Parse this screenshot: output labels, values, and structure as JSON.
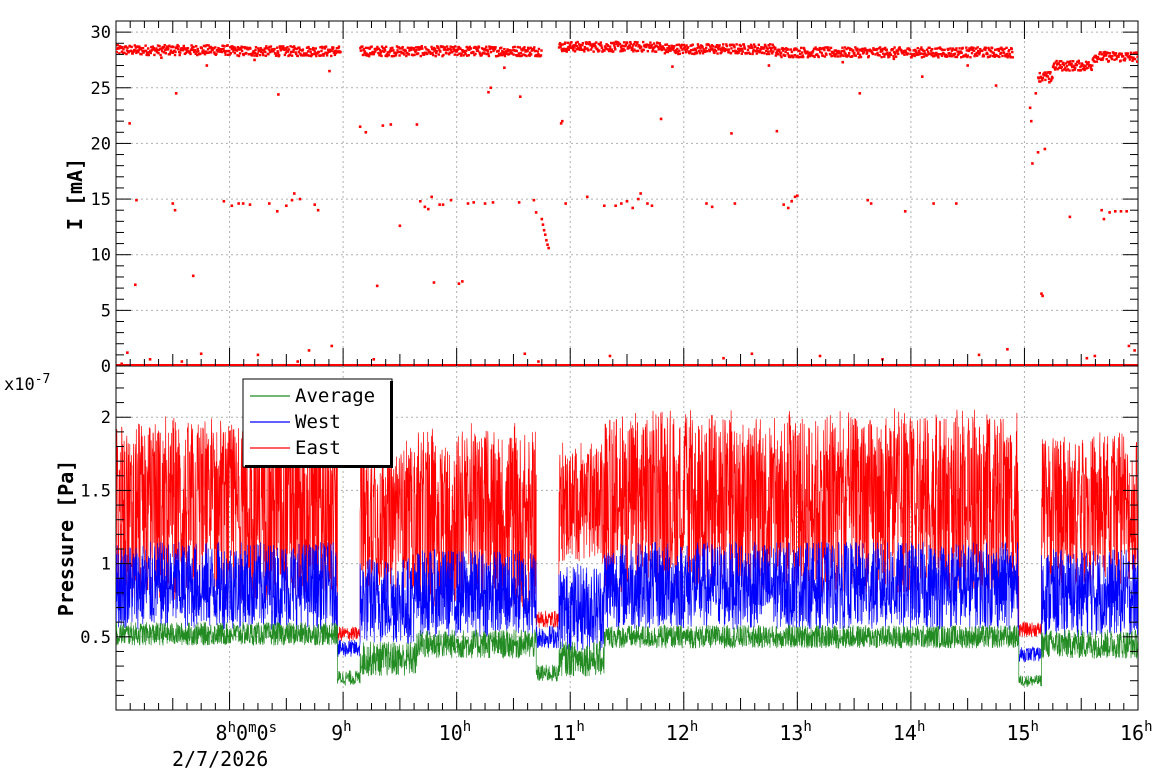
{
  "chart_data": [
    {
      "type": "scatter",
      "panel": "current",
      "ylabel": "I [mA]",
      "ylim": [
        0,
        31
      ],
      "yticks": [
        0,
        5,
        10,
        15,
        20,
        25,
        30
      ],
      "x_range_hours": [
        7.0,
        16.0
      ],
      "grid": true,
      "series": [
        {
          "color": "#ff0000",
          "bands": [
            {
              "start": 7.0,
              "end": 8.0,
              "level": 28.4
            },
            {
              "start": 8.0,
              "end": 8.98,
              "level": 28.3
            },
            {
              "start": 9.15,
              "end": 10.75,
              "level": 28.3
            },
            {
              "start": 10.9,
              "end": 11.8,
              "level": 28.7
            },
            {
              "start": 11.8,
              "end": 12.8,
              "level": 28.5
            },
            {
              "start": 12.8,
              "end": 14.9,
              "level": 28.2
            },
            {
              "start": 15.12,
              "end": 15.25,
              "level": 26.0
            },
            {
              "start": 15.25,
              "end": 15.6,
              "level": 27.0
            },
            {
              "start": 15.6,
              "end": 16.0,
              "level": 27.8
            }
          ],
          "outliers": [
            [
              7.05,
              0.2
            ],
            [
              7.1,
              1.2
            ],
            [
              7.12,
              21.8
            ],
            [
              7.17,
              7.3
            ],
            [
              7.18,
              14.9
            ],
            [
              7.3,
              0.6
            ],
            [
              7.4,
              27.7
            ],
            [
              7.5,
              14.6
            ],
            [
              7.52,
              14.0
            ],
            [
              7.53,
              24.5
            ],
            [
              7.58,
              0.4
            ],
            [
              7.68,
              8.1
            ],
            [
              7.75,
              1.1
            ],
            [
              7.8,
              27.0
            ],
            [
              7.95,
              14.8
            ],
            [
              8.02,
              14.4
            ],
            [
              8.08,
              14.6
            ],
            [
              8.12,
              14.6
            ],
            [
              8.18,
              14.5
            ],
            [
              8.22,
              27.5
            ],
            [
              8.25,
              1.0
            ],
            [
              8.35,
              14.6
            ],
            [
              8.42,
              13.9
            ],
            [
              8.43,
              24.4
            ],
            [
              8.5,
              14.4
            ],
            [
              8.55,
              14.9
            ],
            [
              8.57,
              15.5
            ],
            [
              8.6,
              0.4
            ],
            [
              8.62,
              15.0
            ],
            [
              8.7,
              1.4
            ],
            [
              8.75,
              14.5
            ],
            [
              8.78,
              14.0
            ],
            [
              8.88,
              26.5
            ],
            [
              8.9,
              1.8
            ],
            [
              9.15,
              21.5
            ],
            [
              9.2,
              21.0
            ],
            [
              9.27,
              0.6
            ],
            [
              9.3,
              7.2
            ],
            [
              9.35,
              21.6
            ],
            [
              9.42,
              21.7
            ],
            [
              9.5,
              12.6
            ],
            [
              9.65,
              21.7
            ],
            [
              9.68,
              14.8
            ],
            [
              9.72,
              14.3
            ],
            [
              9.75,
              14.1
            ],
            [
              9.78,
              15.2
            ],
            [
              9.8,
              7.5
            ],
            [
              9.85,
              14.5
            ],
            [
              9.88,
              14.5
            ],
            [
              9.95,
              14.9
            ],
            [
              10.02,
              7.4
            ],
            [
              10.05,
              7.6
            ],
            [
              10.1,
              14.6
            ],
            [
              10.15,
              14.7
            ],
            [
              10.25,
              14.6
            ],
            [
              10.28,
              24.6
            ],
            [
              10.3,
              25.0
            ],
            [
              10.32,
              14.7
            ],
            [
              10.42,
              26.8
            ],
            [
              10.55,
              14.7
            ],
            [
              10.56,
              24.2
            ],
            [
              10.6,
              1.1
            ],
            [
              10.68,
              14.9
            ],
            [
              10.7,
              13.8
            ],
            [
              10.72,
              0.4
            ],
            [
              10.75,
              13.2
            ],
            [
              10.76,
              12.7
            ],
            [
              10.77,
              12.2
            ],
            [
              10.78,
              11.8
            ],
            [
              10.79,
              11.3
            ],
            [
              10.8,
              10.9
            ],
            [
              10.81,
              10.6
            ],
            [
              10.92,
              21.8
            ],
            [
              10.93,
              22.0
            ],
            [
              10.96,
              14.6
            ],
            [
              11.03,
              28.8
            ],
            [
              11.15,
              15.2
            ],
            [
              11.3,
              14.4
            ],
            [
              11.35,
              0.9
            ],
            [
              11.4,
              14.4
            ],
            [
              11.45,
              14.6
            ],
            [
              11.5,
              14.8
            ],
            [
              11.55,
              14.2
            ],
            [
              11.6,
              15.0
            ],
            [
              11.62,
              15.5
            ],
            [
              11.68,
              14.6
            ],
            [
              11.72,
              14.4
            ],
            [
              11.8,
              22.2
            ],
            [
              11.9,
              26.9
            ],
            [
              12.2,
              14.6
            ],
            [
              12.25,
              14.3
            ],
            [
              12.35,
              0.7
            ],
            [
              12.45,
              14.6
            ],
            [
              12.42,
              20.9
            ],
            [
              12.6,
              1.1
            ],
            [
              12.75,
              27.0
            ],
            [
              12.82,
              21.1
            ],
            [
              12.88,
              14.5
            ],
            [
              12.92,
              14.2
            ],
            [
              12.95,
              14.8
            ],
            [
              12.98,
              15.2
            ],
            [
              13.0,
              15.3
            ],
            [
              13.2,
              0.9
            ],
            [
              13.4,
              27.3
            ],
            [
              13.55,
              24.5
            ],
            [
              13.62,
              14.9
            ],
            [
              13.65,
              14.6
            ],
            [
              13.75,
              0.6
            ],
            [
              13.85,
              27.6
            ],
            [
              13.95,
              13.9
            ],
            [
              14.1,
              26.0
            ],
            [
              14.2,
              14.6
            ],
            [
              14.4,
              14.6
            ],
            [
              14.5,
              27.0
            ],
            [
              14.6,
              1.0
            ],
            [
              14.75,
              25.2
            ],
            [
              14.85,
              1.5
            ],
            [
              15.05,
              23.2
            ],
            [
              15.06,
              22.0
            ],
            [
              15.07,
              18.2
            ],
            [
              15.1,
              24.5
            ],
            [
              15.12,
              19.2
            ],
            [
              15.15,
              6.5
            ],
            [
              15.16,
              6.3
            ],
            [
              15.18,
              19.5
            ],
            [
              15.22,
              25.5
            ],
            [
              15.4,
              13.4
            ],
            [
              15.55,
              0.7
            ],
            [
              15.62,
              0.9
            ],
            [
              15.68,
              14.0
            ],
            [
              15.7,
              13.2
            ],
            [
              15.75,
              13.8
            ],
            [
              15.8,
              13.9
            ],
            [
              15.85,
              13.9
            ],
            [
              15.9,
              13.9
            ],
            [
              15.92,
              1.8
            ],
            [
              15.97,
              1.4
            ]
          ],
          "zero_band": [
            [
              7.0,
              16.0
            ]
          ]
        }
      ]
    },
    {
      "type": "line",
      "panel": "pressure",
      "ylabel": "Pressure [Pa]",
      "y_exponent": "x10",
      "y_exponent_power": "-7",
      "ylim": [
        0.0,
        2.35
      ],
      "yticks": [
        0.5,
        1,
        1.5,
        2
      ],
      "ytick_labels": [
        "0.5",
        "1",
        "1.5",
        "2"
      ],
      "x_range_hours": [
        7.0,
        16.0
      ],
      "x_ticks": [
        {
          "hour": 8,
          "label": "8",
          "suffix": "0ʰ0ᵐ0ˢ"
        },
        {
          "hour": 9,
          "label": "9"
        },
        {
          "hour": 10,
          "label": "10"
        },
        {
          "hour": 11,
          "label": "11"
        },
        {
          "hour": 12,
          "label": "12"
        },
        {
          "hour": 13,
          "label": "13"
        },
        {
          "hour": 14,
          "label": "14"
        },
        {
          "hour": 15,
          "label": "15"
        },
        {
          "hour": 16,
          "label": "16"
        }
      ],
      "date_label": "2/7/2026",
      "grid": true,
      "legend_placement": "top-left",
      "series": [
        {
          "name": "Average",
          "color": "#228b22",
          "segments": [
            {
              "start": 7.0,
              "end": 8.95,
              "base": 0.52,
              "amp": 0.08
            },
            {
              "start": 8.95,
              "end": 9.15,
              "base": 0.22,
              "amp": 0.05
            },
            {
              "start": 9.15,
              "end": 9.65,
              "base": 0.35,
              "amp": 0.12
            },
            {
              "start": 9.65,
              "end": 10.7,
              "base": 0.45,
              "amp": 0.1
            },
            {
              "start": 10.7,
              "end": 10.9,
              "base": 0.25,
              "amp": 0.06
            },
            {
              "start": 10.9,
              "end": 11.3,
              "base": 0.35,
              "amp": 0.12
            },
            {
              "start": 11.3,
              "end": 14.95,
              "base": 0.5,
              "amp": 0.08
            },
            {
              "start": 14.95,
              "end": 15.15,
              "base": 0.2,
              "amp": 0.04
            },
            {
              "start": 15.15,
              "end": 16.0,
              "base": 0.45,
              "amp": 0.1
            }
          ]
        },
        {
          "name": "West",
          "color": "#0000ff",
          "segments": [
            {
              "start": 7.0,
              "end": 8.95,
              "base": 0.85,
              "amp": 0.3
            },
            {
              "start": 8.95,
              "end": 9.15,
              "base": 0.42,
              "amp": 0.06
            },
            {
              "start": 9.15,
              "end": 9.65,
              "base": 0.75,
              "amp": 0.3
            },
            {
              "start": 9.65,
              "end": 10.7,
              "base": 0.8,
              "amp": 0.3
            },
            {
              "start": 10.7,
              "end": 10.9,
              "base": 0.5,
              "amp": 0.08
            },
            {
              "start": 10.9,
              "end": 11.3,
              "base": 0.7,
              "amp": 0.3
            },
            {
              "start": 11.3,
              "end": 14.95,
              "base": 0.85,
              "amp": 0.3
            },
            {
              "start": 14.95,
              "end": 15.15,
              "base": 0.38,
              "amp": 0.05
            },
            {
              "start": 15.15,
              "end": 16.0,
              "base": 0.8,
              "amp": 0.3
            }
          ]
        },
        {
          "name": "East",
          "color": "#ff0000",
          "segments": [
            {
              "start": 7.0,
              "end": 8.95,
              "base": 1.35,
              "amp": 0.6
            },
            {
              "start": 8.95,
              "end": 9.15,
              "base": 0.52,
              "amp": 0.05
            },
            {
              "start": 9.15,
              "end": 9.65,
              "base": 1.3,
              "amp": 0.5
            },
            {
              "start": 9.65,
              "end": 10.7,
              "base": 1.3,
              "amp": 0.6
            },
            {
              "start": 10.7,
              "end": 10.9,
              "base": 0.62,
              "amp": 0.06
            },
            {
              "start": 10.9,
              "end": 11.3,
              "base": 1.4,
              "amp": 0.4
            },
            {
              "start": 11.3,
              "end": 14.95,
              "base": 1.4,
              "amp": 0.6
            },
            {
              "start": 14.95,
              "end": 15.15,
              "base": 0.55,
              "amp": 0.05
            },
            {
              "start": 15.15,
              "end": 16.0,
              "base": 1.35,
              "amp": 0.5
            }
          ]
        }
      ]
    }
  ]
}
